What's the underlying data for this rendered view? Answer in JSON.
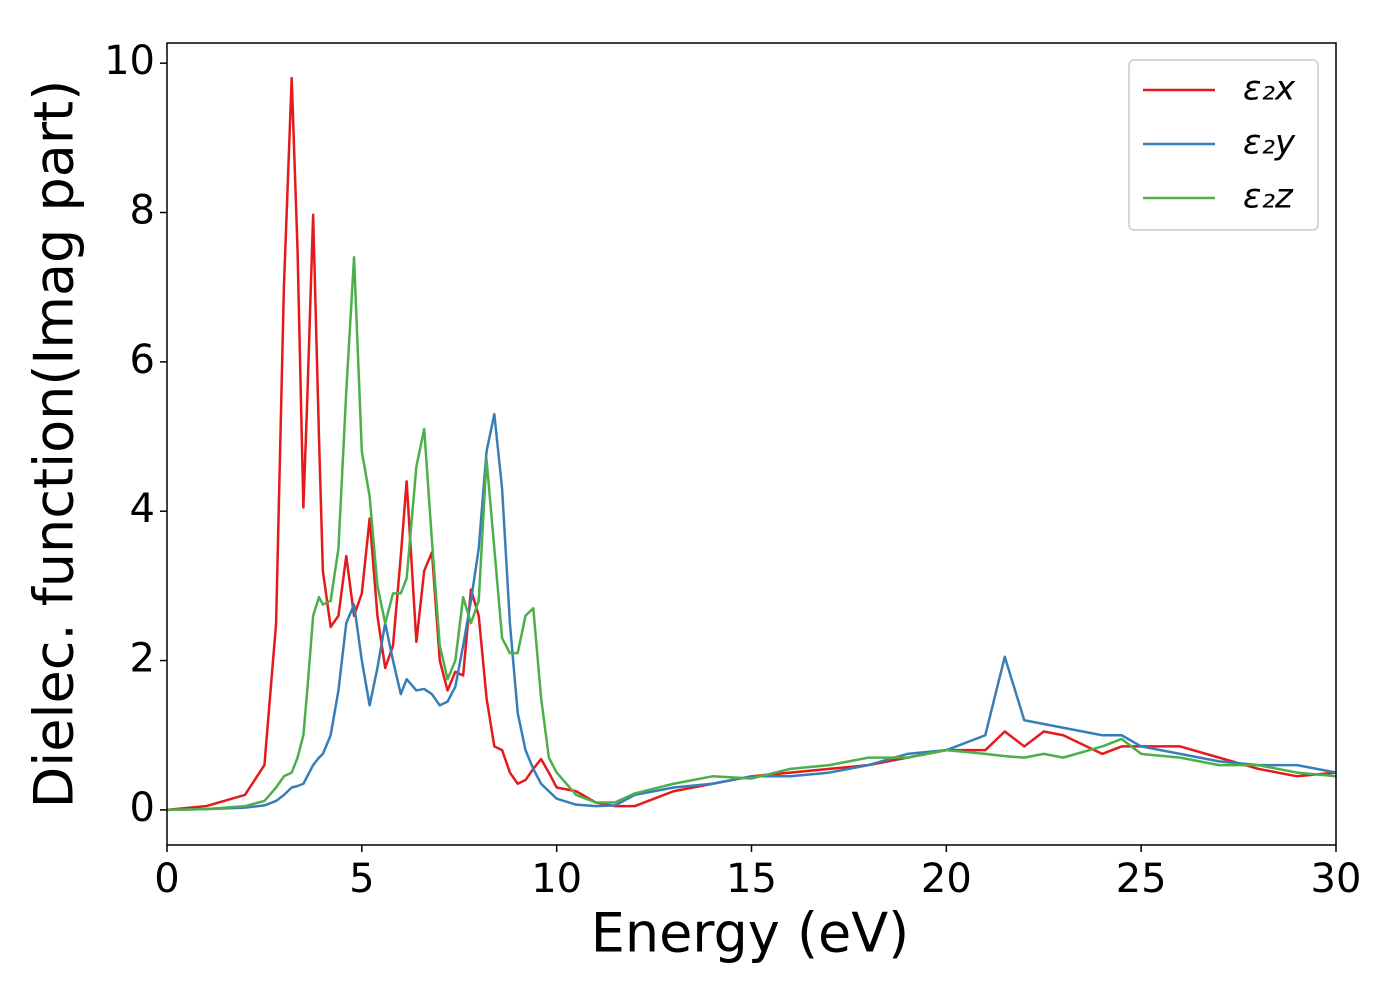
{
  "chart_data": {
    "type": "line",
    "xlabel": "Energy (eV)",
    "ylabel": "Dielec. function(Imag part)",
    "x": [
      0,
      1,
      2,
      2.5,
      2.8,
      3.0,
      3.2,
      3.35,
      3.5,
      3.6,
      3.75,
      3.9,
      4.0,
      4.2,
      4.4,
      4.6,
      4.8,
      5.0,
      5.2,
      5.4,
      5.6,
      5.8,
      6.0,
      6.15,
      6.4,
      6.6,
      6.8,
      7.0,
      7.2,
      7.4,
      7.6,
      7.8,
      8.0,
      8.2,
      8.4,
      8.6,
      8.8,
      9.0,
      9.2,
      9.4,
      9.6,
      9.8,
      10.0,
      10.5,
      11,
      11.5,
      12,
      13,
      14,
      15,
      16,
      17,
      18,
      19,
      20,
      21,
      21.5,
      22,
      22.5,
      23,
      24,
      24.5,
      25,
      26,
      27,
      28,
      29,
      30
    ],
    "series": [
      {
        "name": "ε₂x",
        "color": "#e41a1c",
        "values": [
          0,
          0.05,
          0.2,
          0.6,
          2.5,
          7.0,
          9.8,
          7.5,
          4.05,
          5.5,
          7.97,
          5.0,
          3.2,
          2.45,
          2.6,
          3.4,
          2.6,
          2.9,
          3.9,
          2.6,
          1.9,
          2.2,
          3.4,
          4.4,
          2.25,
          3.2,
          3.45,
          2.0,
          1.6,
          1.85,
          1.8,
          2.95,
          2.6,
          1.5,
          0.85,
          0.8,
          0.5,
          0.35,
          0.4,
          0.55,
          0.68,
          0.5,
          0.3,
          0.25,
          0.1,
          0.05,
          0.05,
          0.25,
          0.35,
          0.45,
          0.5,
          0.55,
          0.6,
          0.7,
          0.8,
          0.8,
          1.05,
          0.85,
          1.05,
          1.0,
          0.75,
          0.85,
          0.85,
          0.85,
          0.7,
          0.55,
          0.45,
          0.5
        ]
      },
      {
        "name": "ε₂y",
        "color": "#377eb8",
        "values": [
          0,
          0.01,
          0.03,
          0.06,
          0.12,
          0.2,
          0.3,
          0.32,
          0.35,
          0.45,
          0.6,
          0.7,
          0.75,
          1.0,
          1.6,
          2.5,
          2.75,
          2.0,
          1.4,
          1.9,
          2.5,
          2.0,
          1.55,
          1.75,
          1.6,
          1.62,
          1.55,
          1.4,
          1.45,
          1.65,
          2.2,
          2.8,
          3.5,
          4.8,
          5.3,
          4.3,
          2.5,
          1.3,
          0.8,
          0.55,
          0.35,
          0.25,
          0.15,
          0.07,
          0.05,
          0.06,
          0.2,
          0.3,
          0.35,
          0.45,
          0.45,
          0.5,
          0.6,
          0.75,
          0.8,
          1.0,
          2.05,
          1.2,
          1.15,
          1.1,
          1.0,
          1.0,
          0.85,
          0.75,
          0.65,
          0.6,
          0.6,
          0.5
        ]
      },
      {
        "name": "ε₂z",
        "color": "#4daf4a",
        "values": [
          0,
          0.01,
          0.05,
          0.12,
          0.3,
          0.45,
          0.5,
          0.7,
          1.0,
          1.6,
          2.6,
          2.85,
          2.75,
          2.8,
          3.5,
          5.6,
          7.4,
          4.8,
          4.2,
          3.0,
          2.5,
          2.9,
          2.9,
          3.1,
          4.6,
          5.1,
          3.6,
          2.2,
          1.75,
          2.0,
          2.85,
          2.5,
          2.8,
          4.7,
          3.5,
          2.3,
          2.1,
          2.1,
          2.6,
          2.7,
          1.5,
          0.7,
          0.5,
          0.2,
          0.1,
          0.1,
          0.22,
          0.35,
          0.45,
          0.42,
          0.55,
          0.6,
          0.7,
          0.7,
          0.8,
          0.75,
          0.72,
          0.7,
          0.75,
          0.7,
          0.85,
          0.95,
          0.75,
          0.7,
          0.6,
          0.6,
          0.5,
          0.45
        ]
      }
    ],
    "xlim": [
      0,
      30
    ],
    "xticks": [
      0,
      5,
      10,
      15,
      20,
      25,
      30
    ],
    "ylim": [
      -0.47,
      10.27
    ],
    "yticks": [
      0,
      2,
      4,
      6,
      8,
      10
    ],
    "legend": "upper right",
    "grid": false
  }
}
